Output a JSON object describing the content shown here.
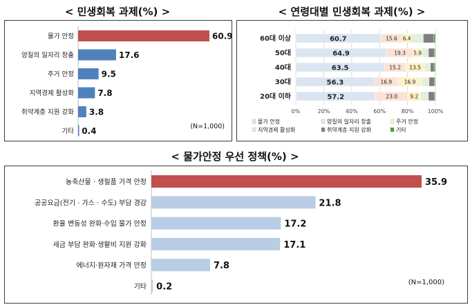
{
  "chart_data": [
    {
      "type": "bar",
      "orientation": "horizontal",
      "title": "< 민생회복 과제(%) >",
      "categories": [
        "물가 안정",
        "양질의 일자리 창출",
        "주거 안정",
        "지역경제 활성화",
        "취약계층 지원 강화",
        "기타"
      ],
      "values": [
        60.9,
        17.6,
        9.5,
        7.8,
        3.8,
        0.4
      ],
      "note": "(N=1,000)",
      "colors": {
        "highlight": "#c0504d",
        "bar": "#4f81bd"
      }
    },
    {
      "type": "bar",
      "orientation": "horizontal",
      "stacked": true,
      "title": "< 연령대별 민생회복 과제(%) >",
      "categories": [
        "60대 이상",
        "50대",
        "40대",
        "30대",
        "20대 이하"
      ],
      "series": [
        {
          "name": "물가 안정",
          "values": [
            60.7,
            64.9,
            63.5,
            56.3,
            57.2
          ],
          "color": "#dbe5f1"
        },
        {
          "name": "양질의 일자리 창출",
          "values": [
            15.6,
            19.3,
            15.2,
            16.9,
            23.0
          ],
          "color": "#fbe2d5"
        },
        {
          "name": "주거 안정",
          "values": [
            6.4,
            5.9,
            13.5,
            16.9,
            9.2
          ],
          "color": "#fdf1c7"
        },
        {
          "name": "지역경제 활성화",
          "values": [
            8.6,
            4.9,
            4.2,
            5.3,
            5.5
          ],
          "color": "#e2efd9"
        },
        {
          "name": "취약계층 지원 강화",
          "values": [
            7.6,
            4.2,
            2.7,
            3.8,
            4.5
          ],
          "color": "#7f7f7f"
        },
        {
          "name": "기타",
          "values": [
            1.1,
            0.8,
            0.9,
            0.8,
            0.6
          ],
          "color": "#4e9a3a"
        }
      ],
      "value_labels": [
        [
          "60.7",
          "15.6",
          "6.4"
        ],
        [
          "64.9",
          "19.3",
          "5.9"
        ],
        [
          "63.5",
          "15.2",
          "13.5"
        ],
        [
          "56.3",
          "16.9",
          "16.9"
        ],
        [
          "57.2",
          "23.0",
          "9.2"
        ]
      ],
      "xticks": [
        "0%",
        "20%",
        "40%",
        "60%",
        "80%",
        "100%"
      ],
      "xlim": [
        0,
        100
      ],
      "legend_position": "bottom"
    },
    {
      "type": "bar",
      "orientation": "horizontal",
      "title": "< 물가안정 우선 정책(%) >",
      "categories": [
        "농축산물 · 생필품 가격 안정",
        "공공요금(전기 · 가스 · 수도) 부담 경감",
        "환율 변동성 완화·수입 물가 안정",
        "세금 부담 완화·생활비 지원 강화",
        "에너지·원자재 가격 안정",
        "기타"
      ],
      "values": [
        35.9,
        21.8,
        17.2,
        17.1,
        7.8,
        0.2
      ],
      "note": "(N=1,000)",
      "colors": {
        "highlight": "#c0504d",
        "bar": "#b9cde5"
      }
    }
  ]
}
